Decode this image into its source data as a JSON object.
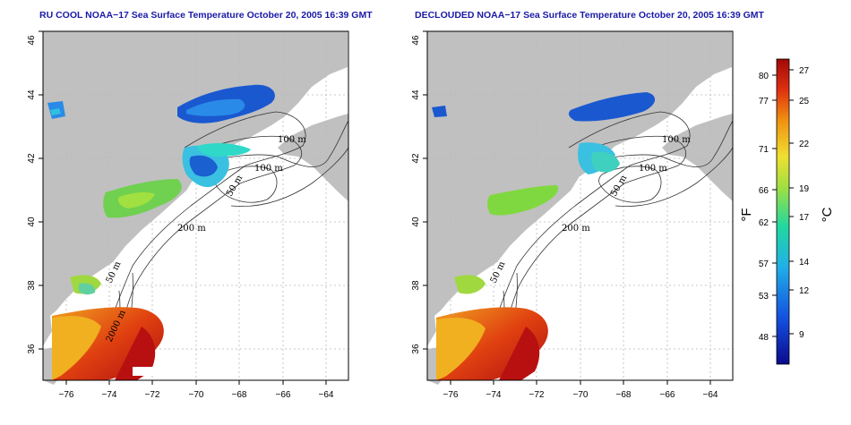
{
  "panels": [
    {
      "title": "RU COOL NOAA−17 Sea Surface Temperature October 20, 2005 16:39 GMT"
    },
    {
      "title": "DECLOUDED NOAA−17 Sea Surface Temperature October 20, 2005 16:39 GMT"
    }
  ],
  "axes": {
    "x_ticks": [
      "−76",
      "−74",
      "−72",
      "−70",
      "−68",
      "−66",
      "−64"
    ],
    "y_ticks": [
      "36",
      "38",
      "40",
      "42",
      "44",
      "46"
    ],
    "lon_range": [
      -77.2,
      -62.8
    ],
    "lat_range": [
      35.0,
      46.0
    ]
  },
  "contour_labels": {
    "left": [
      "100 m",
      "100 m",
      "50 m",
      "200 m",
      "50 m",
      "2000 m"
    ],
    "right": [
      "100 m",
      "100 m",
      "50 m",
      "200 m",
      "50 m"
    ]
  },
  "colorbar": {
    "unit_f": "°F",
    "unit_c": "°C",
    "f_ticks": [
      "80",
      "77",
      "71",
      "66",
      "62",
      "57",
      "53",
      "48"
    ],
    "c_ticks": [
      "27",
      "25",
      "22",
      "19",
      "17",
      "14",
      "12",
      "9"
    ],
    "colors": {
      "cold": "#0a0a8c",
      "mid": "#20c8a0",
      "warm": "#f0e030",
      "hot": "#b01010"
    }
  },
  "colors": {
    "land": "#c0c0c0",
    "ocean": "#ffffff",
    "grid": "#b8b8b8"
  }
}
